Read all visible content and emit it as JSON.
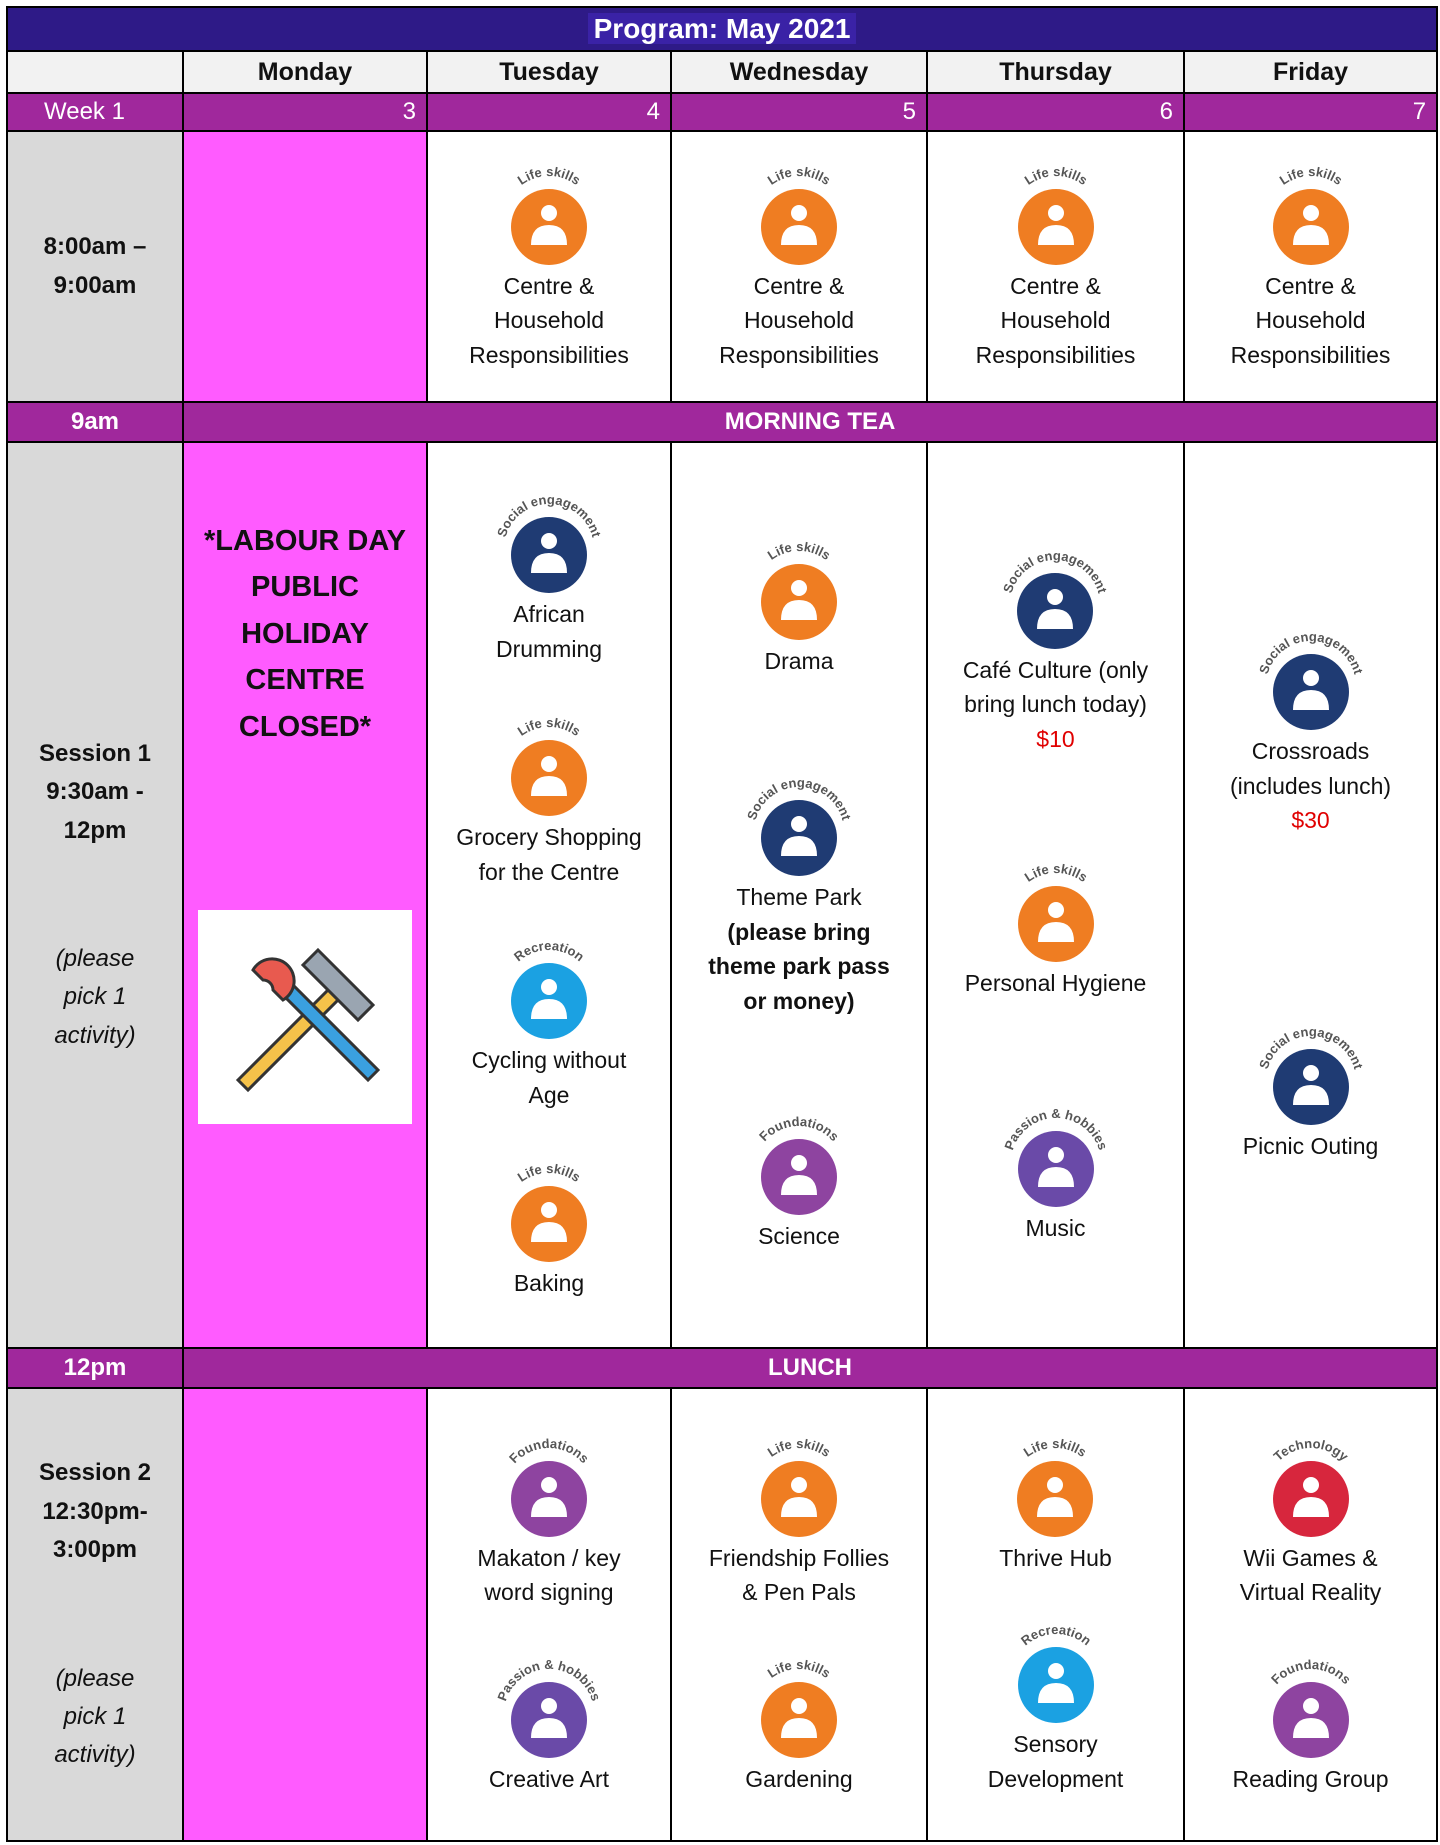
{
  "title": "Program:  May 2021",
  "days": [
    "Monday",
    "Tuesday",
    "Wednesday",
    "Thursday",
    "Friday"
  ],
  "week_label": "Week 1",
  "dates": [
    3,
    4,
    5,
    6,
    7
  ],
  "holiday": "*LABOUR DAY PUBLIC HOLIDAY CENTRE CLOSED*",
  "schedule": [
    {
      "time": "8:00am –\n9:00am",
      "activities": [
        [
          {
            "badge": "Life skills",
            "color": "#ef7d22",
            "name": "Centre &\nHousehold\nResponsibilities"
          }
        ],
        [
          {
            "badge": "Life skills",
            "color": "#ef7d22",
            "name": "Centre &\nHousehold\nResponsibilities"
          }
        ],
        [
          {
            "badge": "Life skills",
            "color": "#ef7d22",
            "name": "Centre &\nHousehold\nResponsibilities"
          }
        ],
        [
          {
            "badge": "Life skills",
            "color": "#ef7d22",
            "name": "Centre &\nHousehold\nResponsibilities"
          }
        ]
      ]
    },
    {
      "time": "9am",
      "break": "MORNING TEA"
    },
    {
      "time": "Session 1\n9:30am -\n12pm",
      "note": "(please\npick 1\nactivity)",
      "holiday": true,
      "activities": [
        [
          {
            "badge": "Social engagement",
            "color": "#1f3b73",
            "name": "African\nDrumming"
          },
          {
            "badge": "Life skills",
            "color": "#ef7d22",
            "name": "Grocery Shopping\nfor the Centre"
          },
          {
            "badge": "Recreation",
            "color": "#1ba1e2",
            "name": "Cycling without\nAge"
          },
          {
            "badge": "Life skills",
            "color": "#ef7d22",
            "name": "Baking"
          }
        ],
        [
          {
            "badge": "Life skills",
            "color": "#ef7d22",
            "name": "Drama"
          },
          {
            "badge": "Social engagement",
            "color": "#1f3b73",
            "name": "Theme Park",
            "detail": "(please bring\ntheme park pass\nor money)"
          },
          {
            "badge": "Foundations",
            "color": "#8e44a0",
            "name": "Science"
          }
        ],
        [
          {
            "badge": "Social engagement",
            "color": "#1f3b73",
            "name": "Café Culture (only\nbring lunch today)",
            "price": "$10"
          },
          {
            "badge": "Life skills",
            "color": "#ef7d22",
            "name": "Personal Hygiene"
          },
          {
            "badge": "Passion & hobbies",
            "color": "#6a4aa8",
            "name": "Music"
          }
        ],
        [
          {
            "badge": "Social engagement",
            "color": "#1f3b73",
            "name": "Crossroads\n(includes lunch)",
            "price": "$30"
          },
          {
            "badge": "Social engagement",
            "color": "#1f3b73",
            "name": "Picnic Outing"
          }
        ]
      ]
    },
    {
      "time": "12pm",
      "break": "LUNCH"
    },
    {
      "time": "Session 2\n12:30pm-\n3:00pm",
      "note": "(please\npick 1\nactivity)",
      "activities": [
        [
          {
            "badge": "Foundations",
            "color": "#8e44a0",
            "name": "Makaton / key\nword signing"
          },
          {
            "badge": "Passion & hobbies",
            "color": "#6a4aa8",
            "name": "Creative Art"
          }
        ],
        [
          {
            "badge": "Life skills",
            "color": "#ef7d22",
            "name": "Friendship Follies\n& Pen Pals"
          },
          {
            "badge": "Life skills",
            "color": "#ef7d22",
            "name": "Gardening"
          }
        ],
        [
          {
            "badge": "Life skills",
            "color": "#ef7d22",
            "name": "Thrive Hub"
          },
          {
            "badge": "Recreation",
            "color": "#1ba1e2",
            "name": "Sensory\nDevelopment"
          }
        ],
        [
          {
            "badge": "Technology",
            "color": "#d7263d",
            "name": "Wii Games &\nVirtual Reality"
          },
          {
            "badge": "Foundations",
            "color": "#8e44a0",
            "name": "Reading Group"
          }
        ]
      ]
    }
  ]
}
